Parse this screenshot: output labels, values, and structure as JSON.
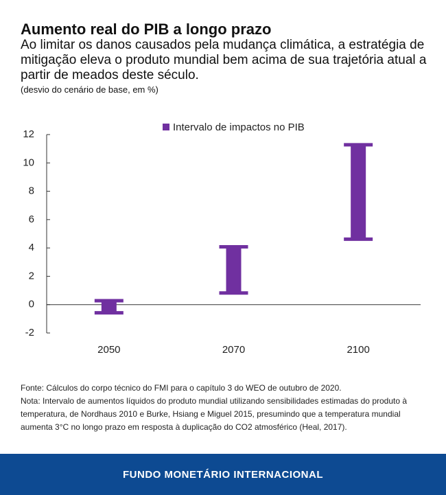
{
  "chart_data": {
    "type": "range",
    "title": "Aumento real do PIB a longo prazo",
    "subtitle": "Ao limitar os danos causados pela mudança climática, a estratégia de mitigação eleva o produto mundial bem acima de sua trajetória atual a partir de meados deste século.",
    "units_note": "(desvio do cenário de base, em %)",
    "categories": [
      "2050",
      "2070",
      "2100"
    ],
    "series": [
      {
        "name": "Intervalo de impactos no PIB",
        "color": "#7030a0",
        "low": [
          -0.7,
          0.7,
          4.5
        ],
        "high": [
          0.4,
          4.2,
          11.4
        ]
      }
    ],
    "ylim": [
      -2,
      12
    ],
    "yticks": [
      -2,
      0,
      2,
      4,
      6,
      8,
      10,
      12
    ],
    "source": "Fonte: Cálculos do corpo técnico do FMI para o capítulo 3 do WEO de outubro de 2020.",
    "note": "Nota: Intervalo de aumentos líquidos do produto mundial utilizando sensibilidades estimadas do produto à temperatura, de Nordhaus 2010 e Burke, Hsiang e Miguel 2015, presumindo que a temperatura mundial aumenta 3°C no longo prazo em resposta à duplicação do CO2 atmosférico (Heal, 2017).",
    "footer": "FUNDO MONETÁRIO INTERNACIONAL"
  }
}
